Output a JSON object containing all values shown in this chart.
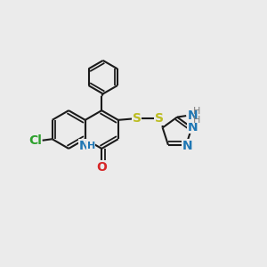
{
  "bg_color": "#ebebeb",
  "bond_color": "#1a1a1a",
  "bond_width": 1.5,
  "atom_colors": {
    "Cl": "#2ca02c",
    "N": "#1f77b4",
    "O": "#d62728",
    "S": "#bcbd22",
    "H": "#7f7f7f",
    "C": "#1a1a1a"
  }
}
